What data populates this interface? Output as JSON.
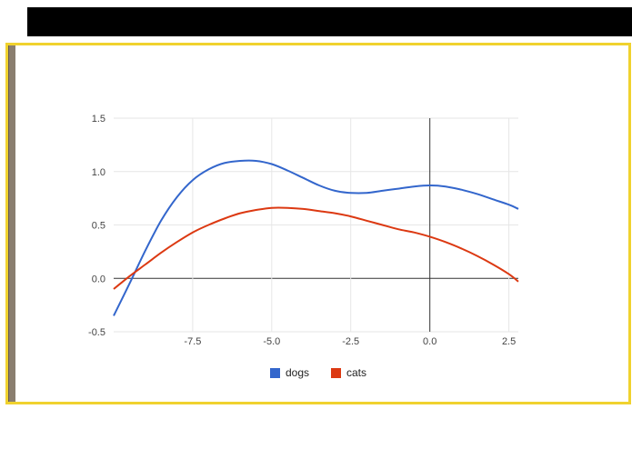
{
  "colors": {
    "top_bar": "#000000",
    "frame_border": "#f0d22e",
    "left_strip": "#8a7e6f",
    "grid_line": "#e6e6e6",
    "axis_line": "#333333",
    "tick_label": "#444444",
    "legend_text": "#222222"
  },
  "chart_data": {
    "type": "line",
    "title": "",
    "xlabel": "",
    "ylabel": "",
    "xlim": [
      -10,
      2.8
    ],
    "ylim": [
      -0.5,
      1.5
    ],
    "grid": true,
    "legend_position": "bottom",
    "x_ticks": [
      -7.5,
      -5,
      -2.5,
      0,
      2.5
    ],
    "x_tick_labels": [
      "-7.5",
      "-5.0",
      "-2.5",
      "0.0",
      "2.5"
    ],
    "y_ticks": [
      -0.5,
      0,
      0.5,
      1,
      1.5
    ],
    "y_tick_labels": [
      "-0.5",
      "0.0",
      "0.5",
      "1.0",
      "1.5"
    ],
    "zero_axes": true,
    "x": [
      -10,
      -9.5,
      -9,
      -8.5,
      -8,
      -7.5,
      -7,
      -6.5,
      -6,
      -5.5,
      -5,
      -4.5,
      -4,
      -3.5,
      -3,
      -2.5,
      -2,
      -1.5,
      -1,
      -0.5,
      0,
      0.5,
      1,
      1.5,
      2,
      2.5,
      2.8
    ],
    "series": [
      {
        "name": "dogs",
        "color": "#3366cc",
        "values": [
          -0.35,
          -0.05,
          0.26,
          0.54,
          0.76,
          0.92,
          1.02,
          1.08,
          1.1,
          1.1,
          1.07,
          1.01,
          0.94,
          0.87,
          0.82,
          0.8,
          0.8,
          0.82,
          0.84,
          0.86,
          0.87,
          0.86,
          0.83,
          0.79,
          0.74,
          0.69,
          0.65
        ]
      },
      {
        "name": "cats",
        "color": "#dc3912",
        "values": [
          -0.1,
          0.02,
          0.13,
          0.24,
          0.34,
          0.43,
          0.5,
          0.56,
          0.61,
          0.64,
          0.66,
          0.66,
          0.65,
          0.63,
          0.61,
          0.58,
          0.54,
          0.5,
          0.46,
          0.43,
          0.39,
          0.34,
          0.28,
          0.21,
          0.13,
          0.04,
          -0.03
        ]
      }
    ]
  }
}
